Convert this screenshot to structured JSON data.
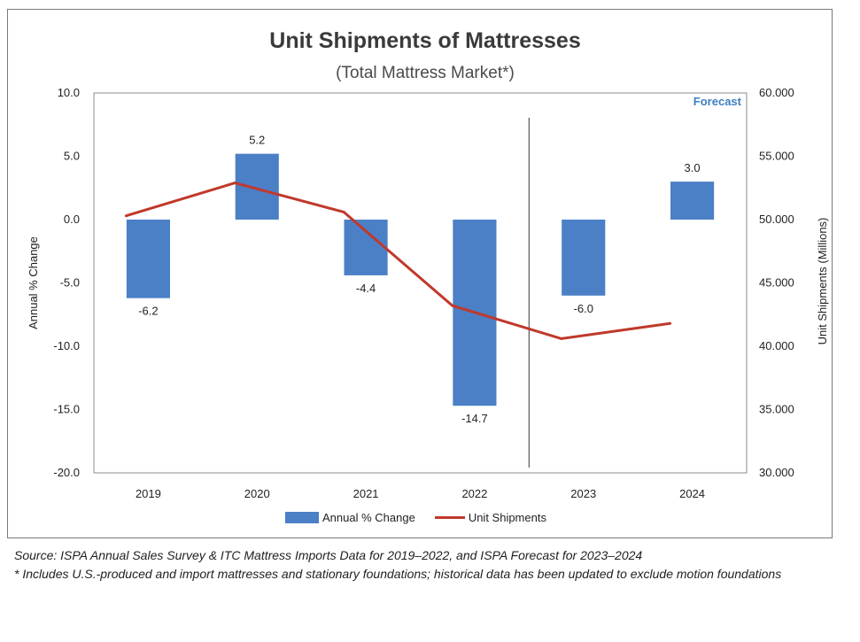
{
  "chart_data": {
    "type": "bar+line",
    "title": "Unit Shipments of Mattresses",
    "subtitle": "(Total Mattress Market*)",
    "categories": [
      "2019",
      "2020",
      "2021",
      "2022",
      "2023",
      "2024"
    ],
    "series": [
      {
        "name": "Annual % Change",
        "type": "bar",
        "axis": "left",
        "values": [
          -6.2,
          5.2,
          -4.4,
          -14.7,
          -6.0,
          3.0
        ],
        "labels": [
          "-6.2",
          "5.2",
          "-4.4",
          "-14.7",
          "-6.0",
          "3.0"
        ]
      },
      {
        "name": "Unit Shipments",
        "type": "line",
        "axis": "right",
        "values": [
          50.3,
          52.9,
          50.6,
          43.2,
          40.6,
          41.8
        ]
      }
    ],
    "forecast_label": "Forecast",
    "forecast_divider_after": "2022",
    "ylabel_left": "Annual % Change",
    "ylabel_right": "Unit Shipments (Millions)",
    "ylim_left": [
      -20,
      10
    ],
    "ylim_right": [
      30,
      60
    ],
    "yticks_left": [
      "10.0",
      "5.0",
      "0.0",
      "-5.0",
      "-10.0",
      "-15.0",
      "-20.0"
    ],
    "yticks_right": [
      "60.000",
      "55.000",
      "50.000",
      "45.000",
      "40.000",
      "35.000",
      "30.000"
    ],
    "legend": [
      "Annual % Change",
      "Unit Shipments"
    ],
    "colors": {
      "bar": "#4b7fc6",
      "line": "#c0392b"
    }
  },
  "footnotes": {
    "source": "Source: ISPA Annual Sales Survey & ITC Mattress Imports Data for 2019–2022, and ISPA Forecast for 2023–2024",
    "note": "* Includes U.S.-produced and import mattresses and stationary foundations; historical data has been updated to exclude motion foundations"
  }
}
